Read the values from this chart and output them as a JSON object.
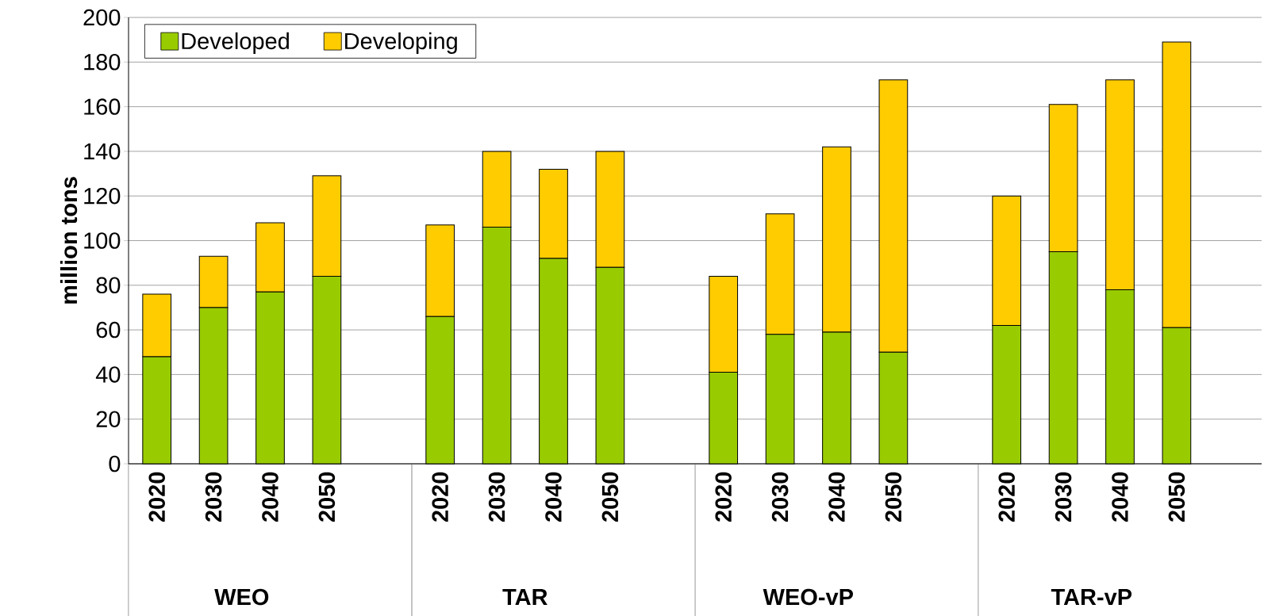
{
  "chart_data": {
    "type": "bar",
    "stacked": true,
    "ylabel": "million tons",
    "categories": [
      "2020",
      "2030",
      "2040",
      "2050",
      null,
      "2020",
      "2030",
      "2040",
      "2050",
      null,
      "2020",
      "2030",
      "2040",
      "2050",
      null,
      "2020",
      "2030",
      "2040",
      "2050",
      null
    ],
    "series": [
      {
        "name": "Developed",
        "color": "#99cc00",
        "values": [
          48,
          70,
          77,
          84,
          null,
          66,
          106,
          92,
          88,
          null,
          41,
          58,
          59,
          50,
          null,
          62,
          95,
          78,
          61,
          null
        ]
      },
      {
        "name": "Developing",
        "color": "#ffcc00",
        "values": [
          28,
          23,
          31,
          45,
          null,
          41,
          34,
          40,
          52,
          null,
          43,
          54,
          83,
          122,
          null,
          58,
          66,
          94,
          128,
          null
        ]
      }
    ],
    "annotations": [
      "WEO",
      "TAR",
      "WEO-vP",
      "TAR-vP"
    ],
    "ylim": [
      0,
      200
    ],
    "yticks": [
      0,
      20,
      40,
      60,
      80,
      100,
      120,
      140,
      160,
      180,
      200
    ],
    "grid": "y",
    "legend": "top left"
  }
}
